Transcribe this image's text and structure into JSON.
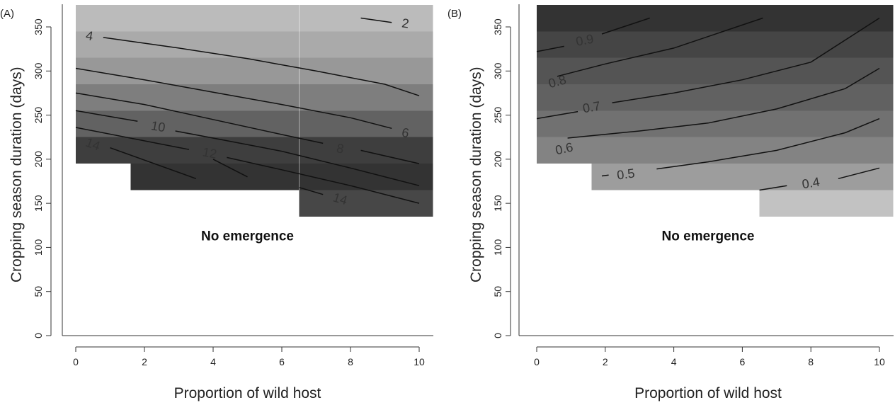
{
  "chart_data": [
    {
      "type": "heatmap",
      "panel_label": "(A)",
      "xlabel": "Proportion of wild host",
      "ylabel": "Cropping season duration (days)",
      "xlim": [
        0,
        10
      ],
      "ylim": [
        0,
        365
      ],
      "xticks": [
        0,
        2,
        4,
        6,
        8,
        10
      ],
      "yticks": [
        0,
        50,
        100,
        150,
        200,
        250,
        300,
        350
      ],
      "annotation": "No emergence",
      "min_season_by_x": [
        {
          "x_from": 0,
          "x_to": 1.6,
          "y_min": 195
        },
        {
          "x_from": 1.6,
          "x_to": 6.5,
          "y_min": 165
        },
        {
          "x_from": 6.5,
          "x_to": 10.4,
          "y_min": 135
        }
      ],
      "row_shades": [
        {
          "y_from": 135,
          "y_to": 165,
          "color": "#474747"
        },
        {
          "y_from": 165,
          "y_to": 195,
          "color": "#333333"
        },
        {
          "y_from": 195,
          "y_to": 225,
          "color": "#3e3e3e"
        },
        {
          "y_from": 225,
          "y_to": 255,
          "color": "#626262"
        },
        {
          "y_from": 255,
          "y_to": 285,
          "color": "#7e7e7e"
        },
        {
          "y_from": 285,
          "y_to": 315,
          "color": "#989898"
        },
        {
          "y_from": 315,
          "y_to": 345,
          "color": "#aaaaaa"
        },
        {
          "y_from": 345,
          "y_to": 375,
          "color": "#bbbbbb"
        }
      ],
      "contours": [
        {
          "level": "2",
          "points": [
            [
              8.3,
              360
            ],
            [
              9.2,
              355
            ]
          ],
          "label_at": [
            9.6,
            354
          ]
        },
        {
          "level": "4",
          "points": [
            [
              0.8,
              338
            ],
            [
              3,
              326
            ],
            [
              5,
              314
            ],
            [
              7,
              300
            ],
            [
              9,
              285
            ],
            [
              10,
              272
            ]
          ],
          "label_at": [
            0.4,
            340
          ]
        },
        {
          "level": "6",
          "points": [
            [
              0,
              303
            ],
            [
              2,
              290
            ],
            [
              4,
              276
            ],
            [
              6,
              262
            ],
            [
              8,
              247
            ],
            [
              9.2,
              235
            ]
          ],
          "label_at": [
            9.6,
            230
          ]
        },
        {
          "level": "8",
          "points": [
            [
              0,
              275
            ],
            [
              2,
              262
            ],
            [
              4,
              245
            ],
            [
              6,
              228
            ],
            [
              7.2,
              218
            ]
          ],
          "label_at": [
            7.7,
            212
          ]
        },
        {
          "level": "8",
          "points": [
            [
              8.3,
              210
            ],
            [
              10,
              195
            ]
          ],
          "label_at": null
        },
        {
          "level": "10",
          "points": [
            [
              0,
              255
            ],
            [
              1.8,
              243
            ]
          ],
          "label_at": [
            2.4,
            237
          ]
        },
        {
          "level": "10",
          "points": [
            [
              2.9,
              232
            ],
            [
              4,
              224
            ],
            [
              6,
              209
            ],
            [
              8,
              190
            ],
            [
              10,
              170
            ]
          ],
          "label_at": null
        },
        {
          "level": "12",
          "points": [
            [
              0,
              236
            ],
            [
              3.3,
              211
            ]
          ],
          "label_at": [
            3.9,
            207
          ]
        },
        {
          "level": "12",
          "points": [
            [
              4.4,
              202
            ],
            [
              6,
              188
            ],
            [
              8,
              170
            ],
            [
              10,
              150
            ]
          ],
          "label_at": null
        },
        {
          "level": "14",
          "points": [
            [
              1,
              213
            ],
            [
              3.5,
              178
            ]
          ],
          "label_at": [
            0.5,
            217
          ]
        },
        {
          "level": "14",
          "points": [
            [
              4,
              200
            ],
            [
              5,
              180
            ]
          ],
          "label_at": null
        },
        {
          "level": "14",
          "points": [
            [
              6.5,
              168
            ],
            [
              7.2,
              160
            ]
          ],
          "label_at": [
            7.7,
            155
          ]
        }
      ]
    },
    {
      "type": "heatmap",
      "panel_label": "(B)",
      "xlabel": "Proportion of wild host",
      "ylabel": "Cropping season duration (days)",
      "xlim": [
        0,
        10
      ],
      "ylim": [
        0,
        365
      ],
      "xticks": [
        0,
        2,
        4,
        6,
        8,
        10
      ],
      "yticks": [
        0,
        50,
        100,
        150,
        200,
        250,
        300,
        350
      ],
      "annotation": "No emergence",
      "min_season_by_x": [
        {
          "x_from": 0,
          "x_to": 1.6,
          "y_min": 195
        },
        {
          "x_from": 1.6,
          "x_to": 6.5,
          "y_min": 165
        },
        {
          "x_from": 6.5,
          "x_to": 10.4,
          "y_min": 135
        }
      ],
      "row_shades": [
        {
          "y_from": 135,
          "y_to": 165,
          "color": "#c2c2c2"
        },
        {
          "y_from": 165,
          "y_to": 195,
          "color": "#9d9d9d"
        },
        {
          "y_from": 195,
          "y_to": 225,
          "color": "#838383"
        },
        {
          "y_from": 225,
          "y_to": 255,
          "color": "#717171"
        },
        {
          "y_from": 255,
          "y_to": 285,
          "color": "#616161"
        },
        {
          "y_from": 285,
          "y_to": 315,
          "color": "#545454"
        },
        {
          "y_from": 315,
          "y_to": 345,
          "color": "#454545"
        },
        {
          "y_from": 345,
          "y_to": 375,
          "color": "#333333"
        }
      ],
      "contours": [
        {
          "level": "0.9",
          "points": [
            [
              0,
              322
            ],
            [
              0.8,
              328
            ]
          ],
          "label_at": [
            1.4,
            335
          ]
        },
        {
          "level": "0.9",
          "points": [
            [
              1.9,
              342
            ],
            [
              3.3,
              360
            ]
          ],
          "label_at": null
        },
        {
          "level": "0.8",
          "points": [
            [
              0.6,
              294
            ],
            [
              2,
              308
            ],
            [
              4,
              326
            ],
            [
              6.6,
              360
            ]
          ],
          "label_at": [
            0.6,
            288
          ]
        },
        {
          "level": "0.7",
          "points": [
            [
              0,
              246
            ],
            [
              1.2,
              254
            ]
          ],
          "label_at": [
            1.6,
            259
          ]
        },
        {
          "level": "0.7",
          "points": [
            [
              2.2,
              264
            ],
            [
              4,
              275
            ],
            [
              6,
              290
            ],
            [
              8,
              310
            ],
            [
              10,
              360
            ]
          ],
          "label_at": null
        },
        {
          "level": "0.6",
          "points": [
            [
              0.9,
              224
            ],
            [
              3,
              232
            ],
            [
              5,
              241
            ],
            [
              7,
              257
            ],
            [
              9,
              280
            ],
            [
              10,
              303
            ]
          ],
          "label_at": [
            0.8,
            212
          ]
        },
        {
          "level": "0.5",
          "points": [
            [
              1.9,
              181
            ],
            [
              2.1,
              182
            ]
          ],
          "label_at": [
            2.6,
            183
          ]
        },
        {
          "level": "0.5",
          "points": [
            [
              3.5,
              189
            ],
            [
              5,
              197
            ],
            [
              7,
              210
            ],
            [
              9,
              230
            ],
            [
              10,
              246
            ]
          ],
          "label_at": null
        },
        {
          "level": "0.4",
          "points": [
            [
              6.5,
              165
            ],
            [
              7.3,
              170
            ]
          ],
          "label_at": [
            8,
            173
          ]
        },
        {
          "level": "0.4",
          "points": [
            [
              8.8,
              178
            ],
            [
              10,
              190
            ]
          ],
          "label_at": null
        }
      ]
    }
  ]
}
